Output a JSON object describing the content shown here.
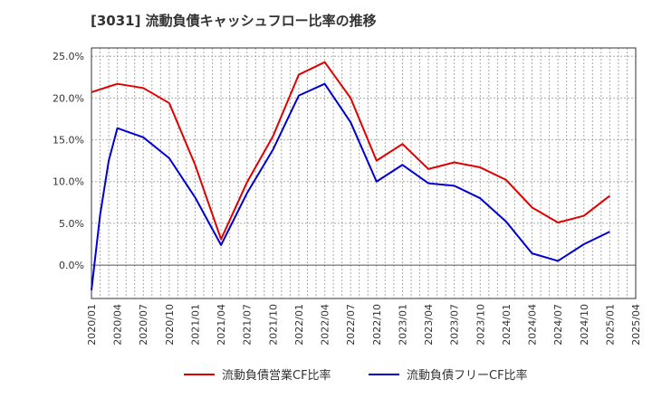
{
  "chart_data": {
    "type": "line",
    "title": "[3031]  流動負債キャッシュフロー比率の推移",
    "x": [
      "2020/01",
      "2020/02",
      "2020/03",
      "2020/04",
      "2020/07",
      "2020/10",
      "2021/01",
      "2021/04",
      "2021/07",
      "2021/10",
      "2022/01",
      "2022/04",
      "2022/07",
      "2022/10",
      "2023/01",
      "2023/04",
      "2023/07",
      "2023/10",
      "2024/01",
      "2024/04",
      "2024/07",
      "2024/10",
      "2025/01"
    ],
    "x_ticks": [
      "2020/01",
      "2020/04",
      "2020/07",
      "2020/10",
      "2021/01",
      "2021/04",
      "2021/07",
      "2021/10",
      "2022/01",
      "2022/04",
      "2022/07",
      "2022/10",
      "2023/01",
      "2023/04",
      "2023/07",
      "2023/10",
      "2024/01",
      "2024/04",
      "2024/07",
      "2024/10",
      "2025/01",
      "2025/04"
    ],
    "y_ticks": [
      "25.0%",
      "20.0%",
      "15.0%",
      "10.0%",
      "5.0%",
      "0.0%"
    ],
    "ylim": [
      -4.0,
      26.0
    ],
    "grid": true,
    "legend": "bottom",
    "series": [
      {
        "name": "流動負債営業CF比率",
        "color": "#e00000",
        "values": [
          20.7,
          null,
          null,
          21.7,
          21.2,
          19.4,
          12.0,
          3.1,
          9.9,
          15.4,
          22.8,
          24.3,
          20.0,
          12.5,
          14.5,
          11.5,
          12.3,
          11.7,
          10.2,
          6.9,
          5.1,
          5.9,
          8.3
        ]
      },
      {
        "name": "流動負債フリーCF比率",
        "color": "#0000d0",
        "values": [
          -3.0,
          6.0,
          12.5,
          16.4,
          15.3,
          12.8,
          8.1,
          2.4,
          8.6,
          13.8,
          20.3,
          21.7,
          17.1,
          10.0,
          12.0,
          9.8,
          9.5,
          8.0,
          5.2,
          1.4,
          0.5,
          2.5,
          4.0
        ]
      }
    ]
  }
}
